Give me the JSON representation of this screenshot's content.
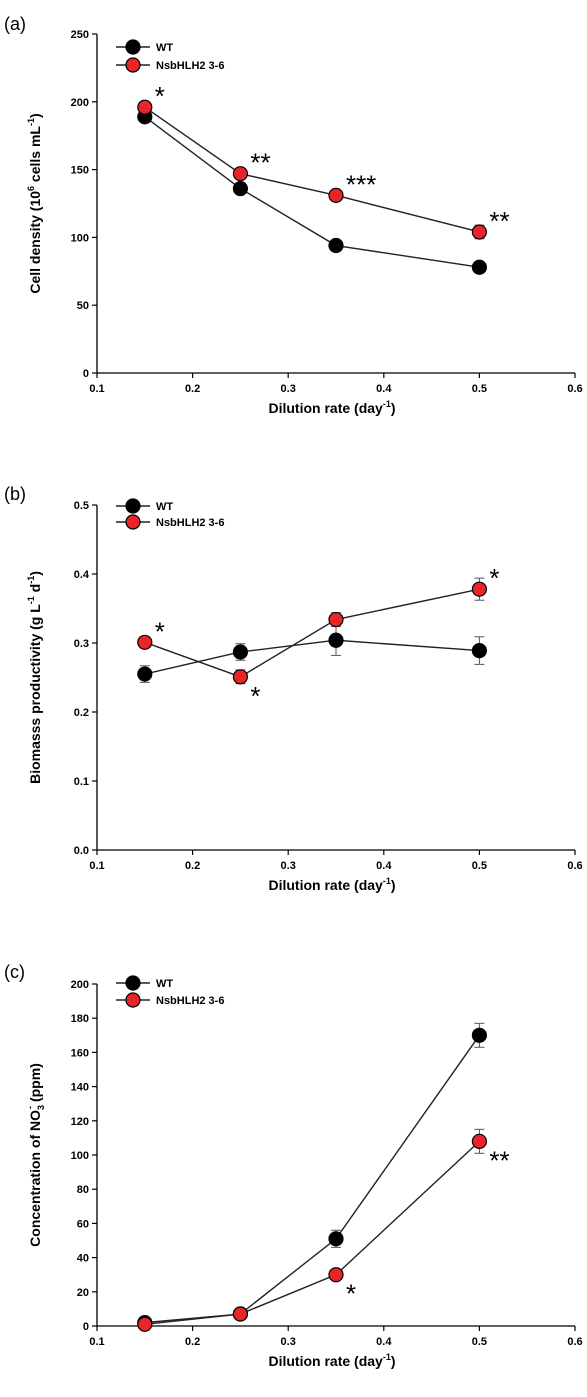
{
  "colors": {
    "WT": "#000000",
    "NsbHLH2 3-6": "#e8262a",
    "line": "#222222",
    "error": "#555555"
  },
  "chart_data": [
    {
      "type": "line",
      "panel_label": "(a)",
      "xlabel": "Dilution rate (day",
      "xlabel_sup": "-1",
      "xlabel_end": ")",
      "ylabel": "Cell density (10",
      "ylabel_sup1": "6",
      "ylabel_mid": " cells mL",
      "ylabel_sup2": "-1",
      "ylabel_end": ")",
      "xlim": [
        0.1,
        0.6
      ],
      "ylim": [
        0,
        250
      ],
      "xticks": [
        "0.1",
        "0.2",
        "0.3",
        "0.4",
        "0.5",
        "0.6"
      ],
      "yticks": [
        "0",
        "50",
        "100",
        "150",
        "200",
        "250"
      ],
      "legend_position": "top-left",
      "series": [
        {
          "name": "WT",
          "x": [
            0.15,
            0.25,
            0.35,
            0.5
          ],
          "y": [
            189,
            136,
            94,
            78
          ],
          "err": [
            4,
            3,
            3,
            3
          ]
        },
        {
          "name": "NsbHLH2 3-6",
          "x": [
            0.15,
            0.25,
            0.35,
            0.5
          ],
          "y": [
            196,
            147,
            131,
            104
          ],
          "err": [
            4,
            3,
            3,
            5
          ]
        }
      ],
      "annotations": [
        {
          "text": "*",
          "x": 0.15,
          "y": 196
        },
        {
          "text": "**",
          "x": 0.25,
          "y": 147
        },
        {
          "text": "***",
          "x": 0.35,
          "y": 131
        },
        {
          "text": "**",
          "x": 0.5,
          "y": 104
        }
      ]
    },
    {
      "type": "line",
      "panel_label": "(b)",
      "xlabel": "Dilution rate (day",
      "xlabel_sup": "-1",
      "xlabel_end": ")",
      "ylabel": "Biomasss productivity (g L",
      "ylabel_sup1": "-1",
      "ylabel_mid": " d",
      "ylabel_sup2": "-1",
      "ylabel_end": ")",
      "xlim": [
        0.1,
        0.6
      ],
      "ylim": [
        0,
        0.5
      ],
      "xticks": [
        "0.1",
        "0.2",
        "0.3",
        "0.4",
        "0.5",
        "0.6"
      ],
      "yticks": [
        "0.0",
        "0.1",
        "0.2",
        "0.3",
        "0.4",
        "0.5"
      ],
      "legend_position": "top-left",
      "series": [
        {
          "name": "WT",
          "x": [
            0.15,
            0.25,
            0.35,
            0.5
          ],
          "y": [
            0.255,
            0.287,
            0.304,
            0.289
          ],
          "err": [
            0.012,
            0.012,
            0.022,
            0.02
          ]
        },
        {
          "name": "NsbHLH2 3-6",
          "x": [
            0.15,
            0.25,
            0.35,
            0.5
          ],
          "y": [
            0.301,
            0.251,
            0.334,
            0.378
          ],
          "err": [
            0.006,
            0.01,
            0.01,
            0.016
          ]
        }
      ],
      "annotations": [
        {
          "text": "*",
          "x": 0.15,
          "y": 0.301
        },
        {
          "text": "*",
          "x": 0.25,
          "y": 0.251,
          "below": true
        },
        {
          "text": "*",
          "x": 0.5,
          "y": 0.378
        }
      ]
    },
    {
      "type": "line",
      "panel_label": "(c)",
      "xlabel": "Dilution rate (day",
      "xlabel_sup": "-1",
      "xlabel_end": ")",
      "ylabel": "Concentration of NO",
      "ylabel_sub": "3",
      "ylabel_sup1": "-",
      "ylabel_mid": " (ppm)",
      "ylabel_sup2": "",
      "ylabel_end": "",
      "xlim": [
        0.1,
        0.6
      ],
      "ylim": [
        0,
        200
      ],
      "xticks": [
        "0.1",
        "0.2",
        "0.3",
        "0.4",
        "0.5",
        "0.6"
      ],
      "yticks": [
        "0",
        "20",
        "40",
        "60",
        "80",
        "100",
        "120",
        "140",
        "160",
        "180",
        "200"
      ],
      "legend_position": "top-left",
      "series": [
        {
          "name": "WT",
          "x": [
            0.15,
            0.25,
            0.35,
            0.5
          ],
          "y": [
            2,
            7,
            51,
            170
          ],
          "err": [
            1,
            1,
            5,
            7
          ]
        },
        {
          "name": "NsbHLH2 3-6",
          "x": [
            0.15,
            0.25,
            0.35,
            0.5
          ],
          "y": [
            1,
            7,
            30,
            108
          ],
          "err": [
            1,
            1,
            2,
            7
          ]
        }
      ],
      "annotations": [
        {
          "text": "*",
          "x": 0.35,
          "y": 30,
          "below": true
        },
        {
          "text": "**",
          "x": 0.5,
          "y": 108,
          "below": true
        }
      ]
    }
  ]
}
